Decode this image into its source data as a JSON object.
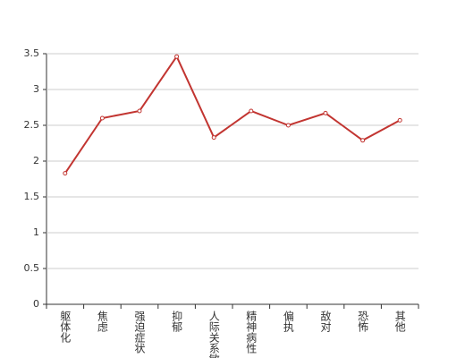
{
  "chart_data": {
    "type": "line",
    "categories": [
      "躯体化",
      "焦虑",
      "强迫症状",
      "抑郁",
      "人际关系敏感",
      "精神病性",
      "偏执",
      "敌对",
      "恐怖",
      "其他"
    ],
    "values": [
      1.83,
      2.6,
      2.7,
      3.46,
      2.33,
      2.7,
      2.5,
      2.67,
      2.29,
      2.57
    ],
    "color": "#c23531",
    "ylim": [
      0,
      3.5
    ],
    "yticks": [
      0,
      0.5,
      1,
      1.5,
      2,
      2.5,
      3,
      3.5
    ],
    "grid": true
  }
}
